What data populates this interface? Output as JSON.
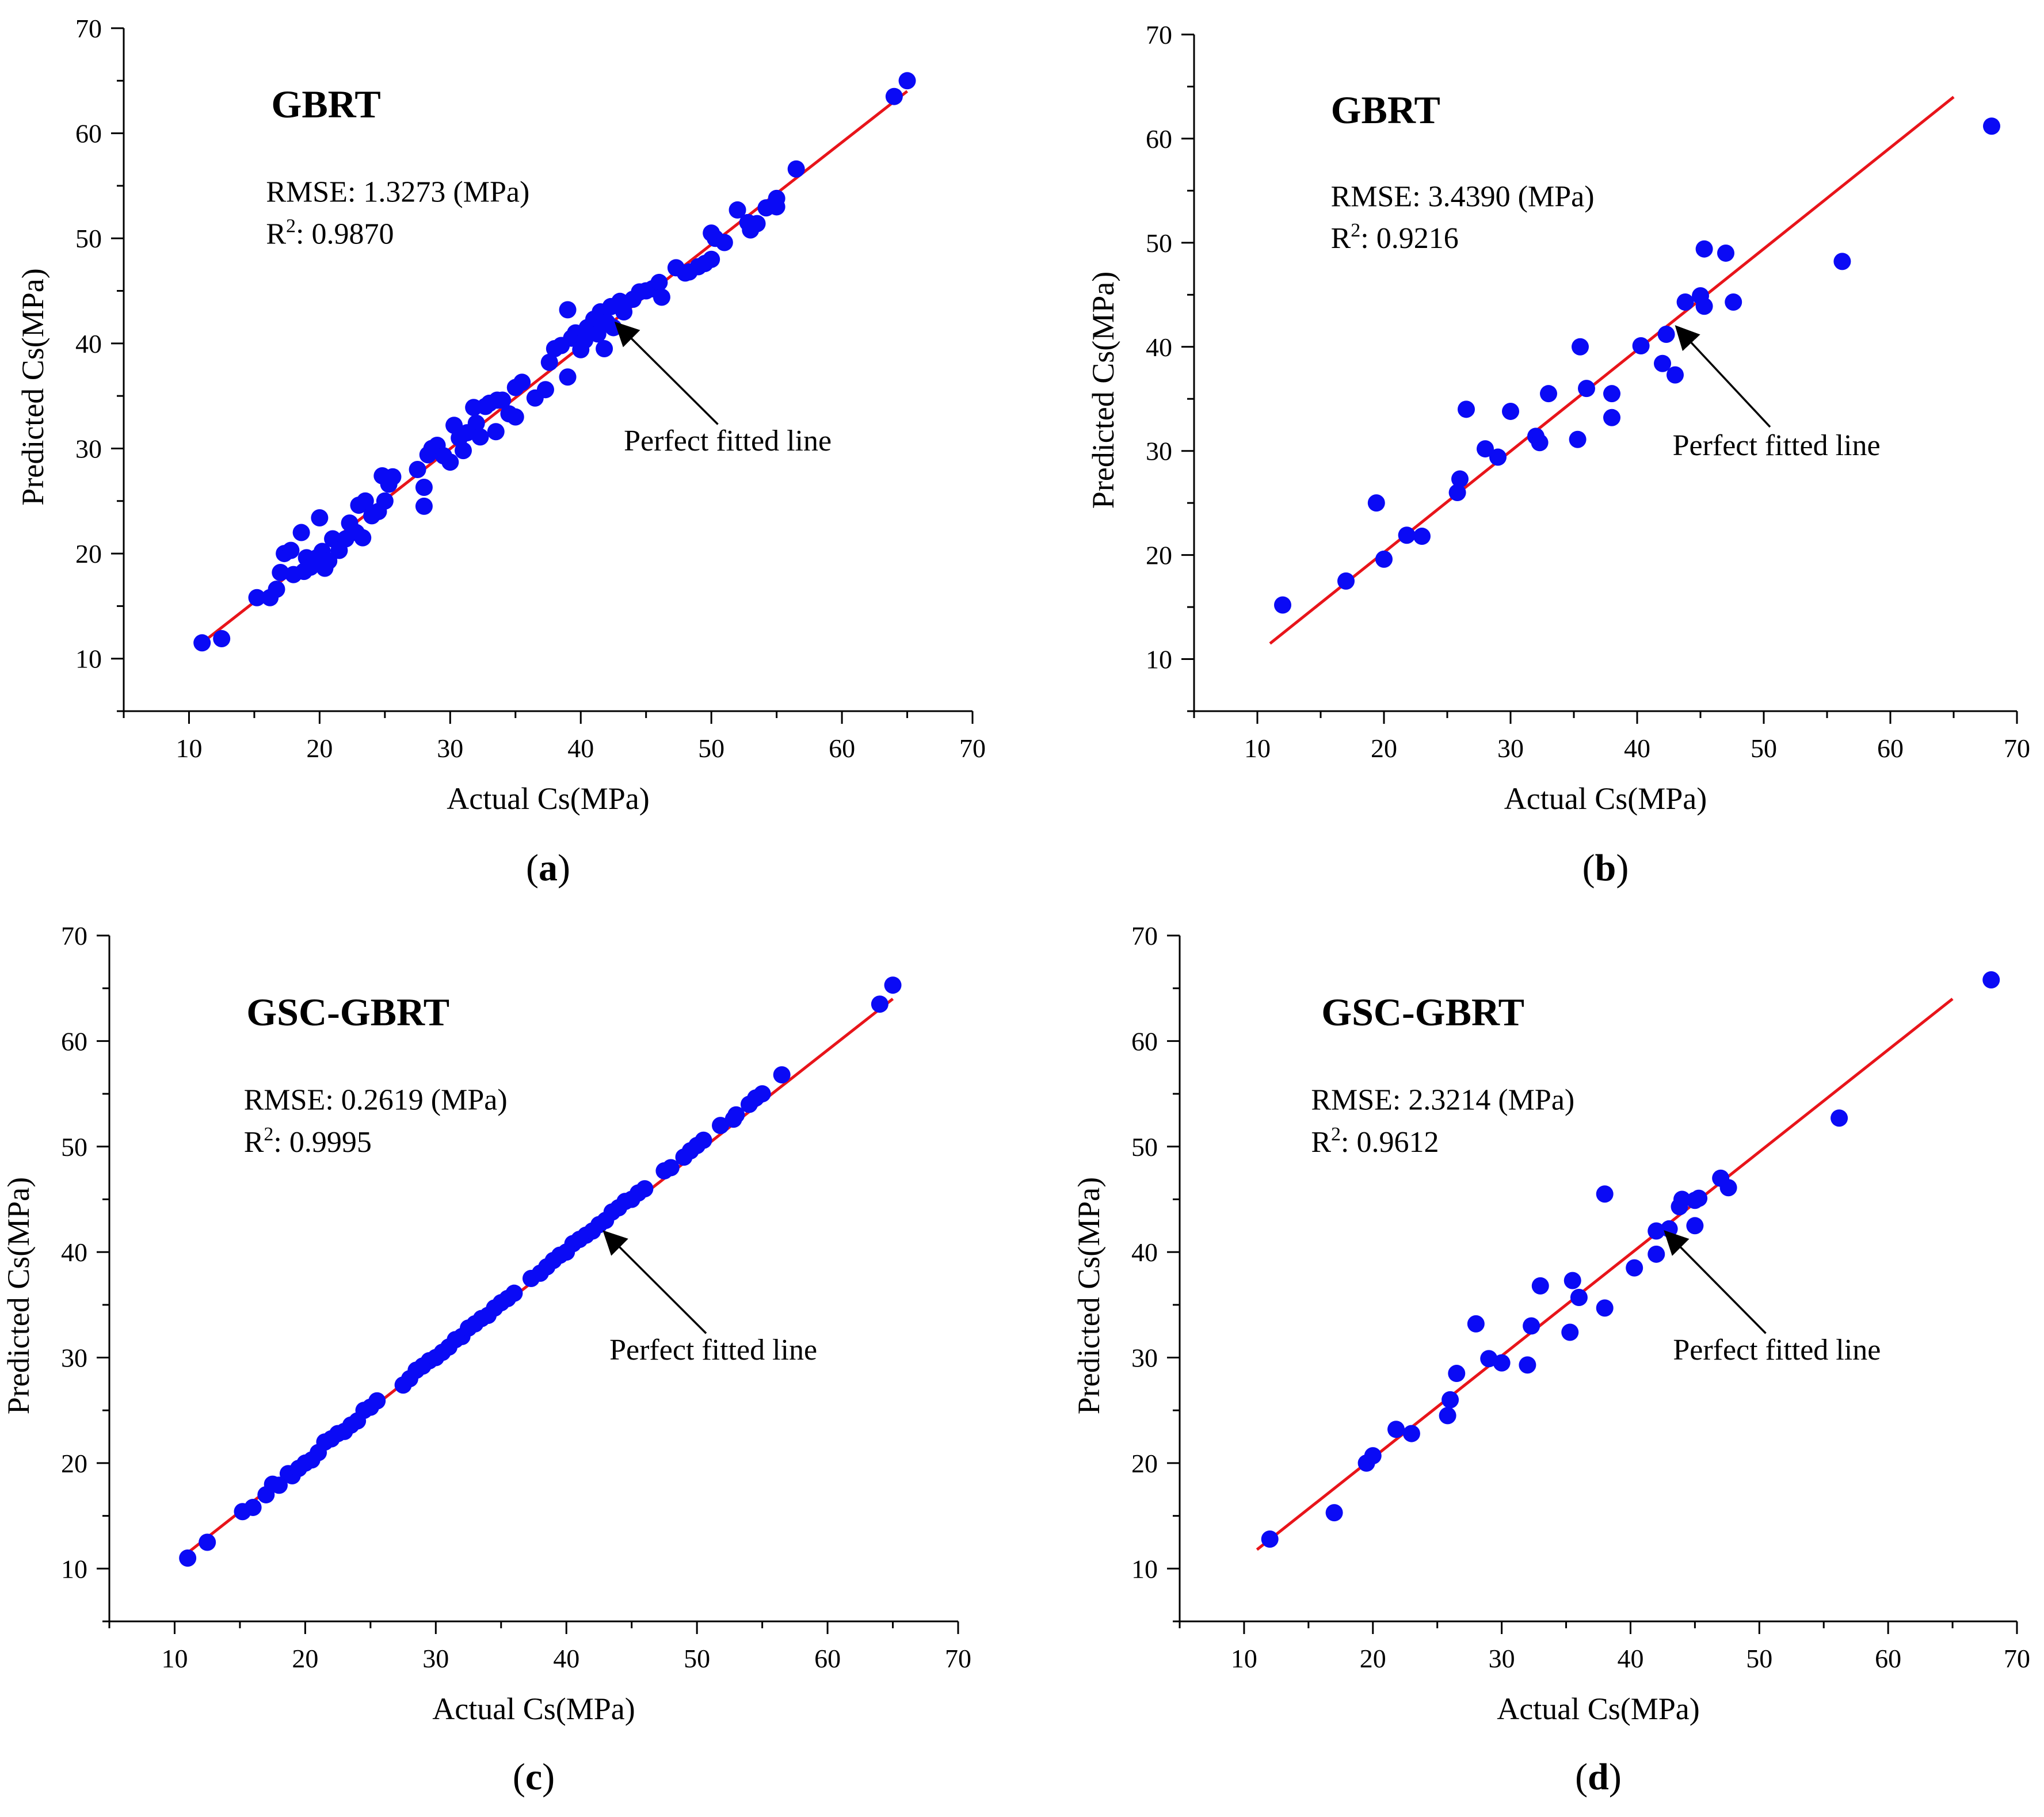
{
  "figure": {
    "panels_order": [
      "a",
      "b",
      "c",
      "d"
    ]
  },
  "colors": {
    "points": "#0a0af5",
    "fit_line": "#e8141a",
    "axis": "#000000",
    "text": "#000000"
  },
  "chart_data": [
    {
      "id": "a",
      "type": "scatter",
      "panel_label": "(a)",
      "title": "GBRT",
      "metric_rmse": "RMSE: 1.3273 (MPa)",
      "metric_r2_prefix": "R",
      "metric_r2_sup": "2",
      "metric_r2_value": ": 0.9870",
      "annotation": "Perfect fitted line",
      "xlabel": "Actual Cs(MPa)",
      "ylabel": "Predicted Cs(MPa)",
      "xlim": [
        5,
        70
      ],
      "ylim": [
        5,
        70
      ],
      "xticks": [
        10,
        20,
        30,
        40,
        50,
        60,
        70
      ],
      "yticks": [
        10,
        20,
        30,
        40,
        50,
        60,
        70
      ],
      "fit_line": {
        "x": [
          11,
          65
        ],
        "y": [
          11.5,
          64
        ]
      },
      "arrow": {
        "tip": [
          42.8,
          41.8
        ],
        "tail": [
          50.5,
          32.3
        ]
      },
      "annotation_pos": [
        43.3,
        29.8
      ],
      "points": [
        [
          11,
          11.5
        ],
        [
          12.5,
          11.9
        ],
        [
          15.2,
          15.8
        ],
        [
          16.2,
          15.8
        ],
        [
          16.7,
          16.6
        ],
        [
          17,
          18.2
        ],
        [
          17.3,
          20
        ],
        [
          17.8,
          20.3
        ],
        [
          18,
          18
        ],
        [
          18.6,
          22
        ],
        [
          18.8,
          18.3
        ],
        [
          19,
          19.6
        ],
        [
          19.3,
          18.7
        ],
        [
          19.8,
          19.6
        ],
        [
          20,
          23.4
        ],
        [
          20.2,
          20.2
        ],
        [
          20.4,
          18.6
        ],
        [
          20.7,
          19.3
        ],
        [
          21,
          21.4
        ],
        [
          21.5,
          20.3
        ],
        [
          22,
          21.4
        ],
        [
          22.3,
          22.9
        ],
        [
          22.8,
          22
        ],
        [
          23,
          24.6
        ],
        [
          23.3,
          21.5
        ],
        [
          23.5,
          25
        ],
        [
          24,
          23.6
        ],
        [
          24.5,
          24
        ],
        [
          24.8,
          27.4
        ],
        [
          25,
          25
        ],
        [
          25.3,
          26.6
        ],
        [
          25.6,
          27.3
        ],
        [
          27.5,
          28
        ],
        [
          28,
          24.5
        ],
        [
          28,
          26.3
        ],
        [
          28.3,
          29.4
        ],
        [
          28.6,
          30
        ],
        [
          29,
          30.3
        ],
        [
          29.5,
          29.3
        ],
        [
          30,
          28.7
        ],
        [
          30.3,
          32.2
        ],
        [
          30.7,
          31
        ],
        [
          31,
          29.8
        ],
        [
          31.3,
          31.5
        ],
        [
          31.8,
          33.9
        ],
        [
          32,
          32.4
        ],
        [
          32.3,
          31.1
        ],
        [
          32.7,
          34
        ],
        [
          33,
          34.3
        ],
        [
          33.5,
          31.6
        ],
        [
          33.6,
          34.6
        ],
        [
          34,
          34.6
        ],
        [
          34.5,
          33.3
        ],
        [
          35,
          33
        ],
        [
          35,
          35.8
        ],
        [
          35.5,
          36.3
        ],
        [
          36.5,
          34.8
        ],
        [
          37.3,
          35.6
        ],
        [
          37.6,
          38.2
        ],
        [
          38,
          39.5
        ],
        [
          38.5,
          39.8
        ],
        [
          39,
          36.8
        ],
        [
          39,
          43.2
        ],
        [
          39.3,
          40.5
        ],
        [
          39.6,
          41
        ],
        [
          40,
          39.4
        ],
        [
          40.3,
          40.3
        ],
        [
          40.5,
          41.5
        ],
        [
          41,
          42.3
        ],
        [
          41.3,
          40.9
        ],
        [
          41.5,
          43
        ],
        [
          41.8,
          39.5
        ],
        [
          42,
          42
        ],
        [
          42.3,
          43.5
        ],
        [
          42.5,
          41.5
        ],
        [
          43,
          44
        ],
        [
          43.3,
          43
        ],
        [
          44,
          44.2
        ],
        [
          44.5,
          44.9
        ],
        [
          45,
          45
        ],
        [
          45.5,
          45.2
        ],
        [
          46,
          45.8
        ],
        [
          46.2,
          44.4
        ],
        [
          47.3,
          47.2
        ],
        [
          48,
          46.7
        ],
        [
          48.3,
          46.8
        ],
        [
          49,
          47.3
        ],
        [
          49.5,
          47.6
        ],
        [
          50,
          48
        ],
        [
          50,
          50.5
        ],
        [
          50.3,
          50
        ],
        [
          51,
          49.6
        ],
        [
          52,
          52.7
        ],
        [
          52.8,
          51.5
        ],
        [
          53,
          50.8
        ],
        [
          53.5,
          51.4
        ],
        [
          54.2,
          52.9
        ],
        [
          55,
          53
        ],
        [
          55,
          53.8
        ],
        [
          56.5,
          56.6
        ],
        [
          64,
          63.5
        ],
        [
          65,
          65
        ]
      ]
    },
    {
      "id": "b",
      "type": "scatter",
      "panel_label": "(b)",
      "title": "GBRT",
      "metric_rmse": "RMSE: 3.4390 (MPa)",
      "metric_r2_prefix": "R",
      "metric_r2_sup": "2",
      "metric_r2_value": ": 0.9216",
      "annotation": "Perfect fitted line",
      "xlabel": "Actual Cs(MPa)",
      "ylabel": "Predicted Cs(MPa)",
      "xlim": [
        5,
        70
      ],
      "ylim": [
        5,
        70
      ],
      "xticks": [
        10,
        20,
        30,
        40,
        50,
        60,
        70
      ],
      "yticks": [
        10,
        20,
        30,
        40,
        50,
        60,
        70
      ],
      "fit_line": {
        "x": [
          11,
          65
        ],
        "y": [
          11.5,
          64
        ]
      },
      "arrow": {
        "tip": [
          43.2,
          41.8
        ],
        "tail": [
          50.5,
          32.3
        ]
      },
      "annotation_pos": [
        42.8,
        29.6
      ],
      "points": [
        [
          12,
          15.2
        ],
        [
          17,
          17.5
        ],
        [
          19.4,
          25
        ],
        [
          20,
          19.6
        ],
        [
          21.8,
          21.9
        ],
        [
          23,
          21.8
        ],
        [
          25.8,
          26
        ],
        [
          26,
          27.3
        ],
        [
          26.5,
          34
        ],
        [
          28,
          30.2
        ],
        [
          29,
          29.4
        ],
        [
          30,
          33.8
        ],
        [
          32,
          31.4
        ],
        [
          32.3,
          30.8
        ],
        [
          33,
          35.5
        ],
        [
          35.3,
          31.1
        ],
        [
          35.5,
          40
        ],
        [
          36,
          36
        ],
        [
          38,
          35.5
        ],
        [
          38,
          33.2
        ],
        [
          40.3,
          40.1
        ],
        [
          42,
          38.4
        ],
        [
          42.3,
          41.2
        ],
        [
          43,
          37.3
        ],
        [
          43.8,
          44.3
        ],
        [
          45,
          44.9
        ],
        [
          45.3,
          43.9
        ],
        [
          45.3,
          49.4
        ],
        [
          47,
          49
        ],
        [
          47.6,
          44.3
        ],
        [
          56.2,
          48.2
        ],
        [
          68,
          61.2
        ]
      ]
    },
    {
      "id": "c",
      "type": "scatter",
      "panel_label": "(c)",
      "title": "GSC-GBRT",
      "metric_rmse": "RMSE: 0.2619 (MPa)",
      "metric_r2_prefix": "R",
      "metric_r2_sup": "2",
      "metric_r2_value": ": 0.9995",
      "annotation": "Perfect fitted line",
      "xlabel": "Actual Cs(MPa)",
      "ylabel": "Predicted Cs(MPa)",
      "xlim": [
        5,
        70
      ],
      "ylim": [
        5,
        70
      ],
      "xticks": [
        10,
        20,
        30,
        40,
        50,
        60,
        70
      ],
      "yticks": [
        10,
        20,
        30,
        40,
        50,
        60,
        70
      ],
      "fit_line": {
        "x": [
          11,
          65
        ],
        "y": [
          11.5,
          64
        ]
      },
      "arrow": {
        "tip": [
          43,
          41.8
        ],
        "tail": [
          50.7,
          32.3
        ]
      },
      "annotation_pos": [
        43.3,
        29.8
      ],
      "points": [
        [
          11,
          11
        ],
        [
          12.5,
          12.5
        ],
        [
          15.2,
          15.4
        ],
        [
          16,
          15.8
        ],
        [
          17,
          17
        ],
        [
          17.5,
          18
        ],
        [
          18,
          17.9
        ],
        [
          18.7,
          19
        ],
        [
          19,
          18.8
        ],
        [
          19.5,
          19.5
        ],
        [
          20,
          20
        ],
        [
          20.5,
          20.3
        ],
        [
          21,
          21
        ],
        [
          21.5,
          22
        ],
        [
          22,
          22.3
        ],
        [
          22.5,
          22.8
        ],
        [
          23,
          23
        ],
        [
          23.5,
          23.6
        ],
        [
          24,
          24
        ],
        [
          24.5,
          25
        ],
        [
          25,
          25.3
        ],
        [
          25.5,
          25.9
        ],
        [
          27.5,
          27.4
        ],
        [
          28,
          28
        ],
        [
          28.5,
          28.8
        ],
        [
          29,
          29.2
        ],
        [
          29.5,
          29.7
        ],
        [
          30,
          30
        ],
        [
          30.5,
          30.5
        ],
        [
          31,
          31
        ],
        [
          31.5,
          31.7
        ],
        [
          32,
          32
        ],
        [
          32.5,
          32.8
        ],
        [
          33,
          33.2
        ],
        [
          33.5,
          33.7
        ],
        [
          34,
          34
        ],
        [
          34.5,
          34.7
        ],
        [
          35,
          35.2
        ],
        [
          35.5,
          35.6
        ],
        [
          36,
          36.1
        ],
        [
          37.3,
          37.5
        ],
        [
          38,
          38
        ],
        [
          38.5,
          38.6
        ],
        [
          39,
          39.2
        ],
        [
          39.5,
          39.7
        ],
        [
          40,
          40
        ],
        [
          40.5,
          40.8
        ],
        [
          41,
          41.2
        ],
        [
          41.5,
          41.6
        ],
        [
          42,
          42
        ],
        [
          42.5,
          42.6
        ],
        [
          43,
          43
        ],
        [
          43.5,
          43.8
        ],
        [
          44,
          44.2
        ],
        [
          44.5,
          44.8
        ],
        [
          45,
          45
        ],
        [
          45.5,
          45.6
        ],
        [
          46,
          46
        ],
        [
          47.5,
          47.7
        ],
        [
          48,
          48
        ],
        [
          49,
          49
        ],
        [
          49.5,
          49.6
        ],
        [
          50,
          50.1
        ],
        [
          50.5,
          50.6
        ],
        [
          51.8,
          52
        ],
        [
          52.8,
          52.6
        ],
        [
          53,
          53
        ],
        [
          54,
          54
        ],
        [
          54.5,
          54.6
        ],
        [
          55,
          55
        ],
        [
          56.5,
          56.8
        ],
        [
          64,
          63.5
        ],
        [
          65,
          65.3
        ]
      ]
    },
    {
      "id": "d",
      "type": "scatter",
      "panel_label": "(d)",
      "title": "GSC-GBRT",
      "metric_rmse": "RMSE: 2.3214 (MPa)",
      "metric_r2_prefix": "R",
      "metric_r2_sup": "2",
      "metric_r2_value": ": 0.9612",
      "annotation": "Perfect fitted line",
      "xlabel": "Actual Cs(MPa)",
      "ylabel": "Predicted Cs(MPa)",
      "xlim": [
        5,
        70
      ],
      "ylim": [
        5,
        70
      ],
      "xticks": [
        10,
        20,
        30,
        40,
        50,
        60,
        70
      ],
      "yticks": [
        10,
        20,
        30,
        40,
        50,
        60,
        70
      ],
      "fit_line": {
        "x": [
          11,
          65
        ],
        "y": [
          11.8,
          64
        ]
      },
      "arrow": {
        "tip": [
          42.8,
          41.8
        ],
        "tail": [
          50.5,
          32.3
        ]
      },
      "annotation_pos": [
        43.3,
        29.8
      ],
      "points": [
        [
          12,
          12.8
        ],
        [
          17,
          15.3
        ],
        [
          19.5,
          20
        ],
        [
          20,
          20.7
        ],
        [
          21.8,
          23.2
        ],
        [
          23,
          22.8
        ],
        [
          25.8,
          24.5
        ],
        [
          26,
          26
        ],
        [
          26.5,
          28.5
        ],
        [
          28,
          33.2
        ],
        [
          29,
          29.9
        ],
        [
          30,
          29.5
        ],
        [
          32,
          29.3
        ],
        [
          32.3,
          33
        ],
        [
          33,
          36.8
        ],
        [
          35.3,
          32.4
        ],
        [
          35.5,
          37.3
        ],
        [
          36,
          35.7
        ],
        [
          38,
          34.7
        ],
        [
          38,
          45.5
        ],
        [
          40.3,
          38.5
        ],
        [
          42,
          39.8
        ],
        [
          42,
          42
        ],
        [
          43,
          42.2
        ],
        [
          43.8,
          44.3
        ],
        [
          44,
          45
        ],
        [
          45,
          42.5
        ],
        [
          45,
          44.9
        ],
        [
          45.3,
          45.1
        ],
        [
          47,
          47
        ],
        [
          47.6,
          46.1
        ],
        [
          56.2,
          52.7
        ],
        [
          68,
          65.8
        ]
      ]
    }
  ]
}
